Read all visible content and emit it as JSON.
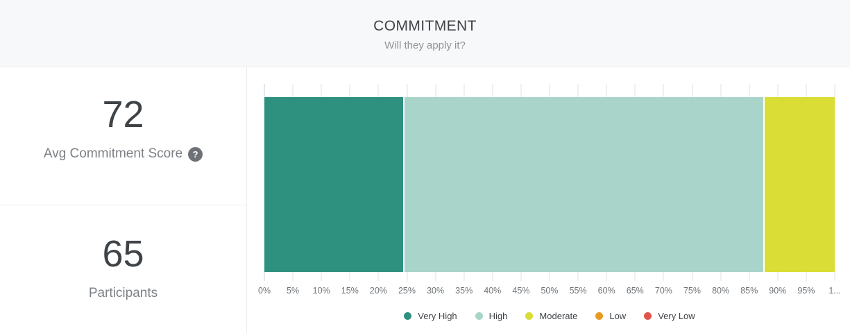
{
  "header": {
    "title": "COMMITMENT",
    "subtitle": "Will they apply it?"
  },
  "stats": {
    "score": {
      "value": "72",
      "label": "Avg Commitment Score",
      "help_icon_glyph": "?"
    },
    "participants": {
      "value": "65",
      "label": "Participants"
    }
  },
  "chart_data": {
    "type": "bar",
    "variant": "horizontal-stacked-100pct",
    "title": "",
    "xlabel": "",
    "ylabel": "",
    "xlim": [
      0,
      100
    ],
    "tick_step_pct": 5,
    "x_tick_labels": [
      "0%",
      "5%",
      "10%",
      "15%",
      "20%",
      "25%",
      "30%",
      "35%",
      "40%",
      "45%",
      "50%",
      "55%",
      "60%",
      "65%",
      "70%",
      "75%",
      "80%",
      "85%",
      "90%",
      "95%",
      "1..."
    ],
    "legend_position": "bottom",
    "series": [
      {
        "name": "Very High",
        "value_pct": 24.6,
        "color": "#2e9180"
      },
      {
        "name": "High",
        "value_pct": 63.1,
        "color": "#a9d4c9"
      },
      {
        "name": "Moderate",
        "value_pct": 12.3,
        "color": "#d9dd35"
      },
      {
        "name": "Low",
        "value_pct": 0,
        "color": "#e89b22"
      },
      {
        "name": "Very Low",
        "value_pct": 0,
        "color": "#e0544a"
      }
    ]
  }
}
